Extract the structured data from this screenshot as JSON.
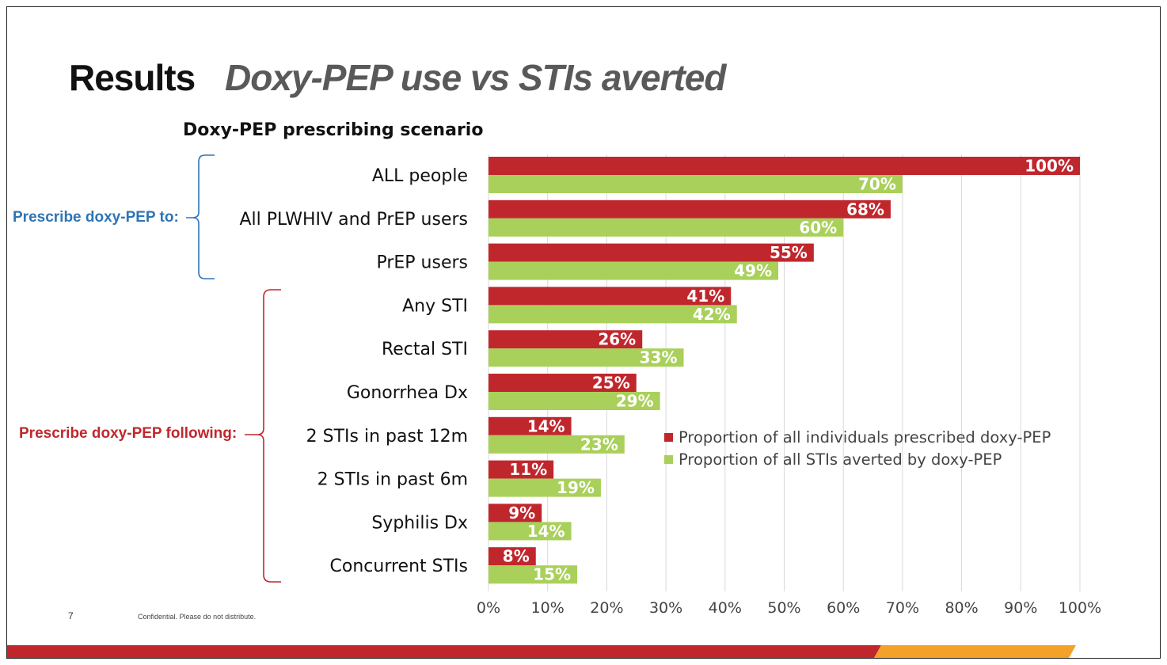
{
  "slide": {
    "title_main": "Results",
    "title_sub": "Doxy-PEP use vs STIs averted",
    "scenario_heading": "Doxy-PEP prescribing scenario",
    "group_to_label": "Prescribe doxy-PEP to:",
    "group_following_label": "Prescribe doxy-PEP following:",
    "page_number": "7",
    "confidential_note": "Confidential. Please do not distribute."
  },
  "colors": {
    "red": "#c0272d",
    "green": "#a9d05a",
    "blue_bracket": "#2e75b6",
    "red_bracket": "#c0272d",
    "stripe_red": "#c0272d",
    "stripe_orange": "#f4a12a",
    "grid": "#d9d9d9"
  },
  "chart_data": {
    "type": "bar",
    "orientation": "horizontal",
    "categories": [
      "ALL people",
      "All PLWHIV and PrEP users",
      "PrEP users",
      "Any STI",
      "Rectal STI",
      "Gonorrhea Dx",
      "2 STIs in past 12m",
      "2 STIs in past 6m",
      "Syphilis Dx",
      "Concurrent STIs"
    ],
    "series": [
      {
        "name": "Proportion of all individuals prescribed doxy-PEP",
        "color": "#c0272d",
        "values": [
          100,
          68,
          55,
          41,
          26,
          25,
          14,
          11,
          9,
          8
        ],
        "labels": [
          "100%",
          "68%",
          "55%",
          "41%",
          "26%",
          "25%",
          "14%",
          "11%",
          "9%",
          "8%"
        ]
      },
      {
        "name": "Proportion of all STIs averted by doxy-PEP",
        "color": "#a9d05a",
        "values": [
          70,
          60,
          49,
          42,
          33,
          29,
          23,
          19,
          14,
          15
        ],
        "labels": [
          "70%",
          "60%",
          "49%",
          "42%",
          "33%",
          "29%",
          "23%",
          "19%",
          "14%",
          "15%"
        ]
      }
    ],
    "xlim": [
      0,
      100
    ],
    "xticks": [
      "0%",
      "10%",
      "20%",
      "30%",
      "40%",
      "50%",
      "60%",
      "70%",
      "80%",
      "90%",
      "100%"
    ],
    "grid": true,
    "legend_position": "center-right"
  }
}
